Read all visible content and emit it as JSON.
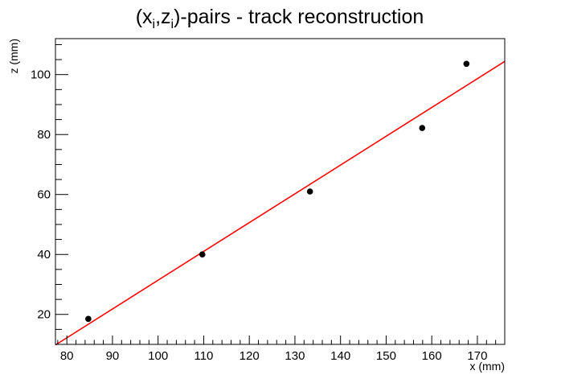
{
  "chart_data": {
    "type": "scatter",
    "title": {
      "prefix": "(x",
      "sub1": "i",
      "middle": ",z",
      "sub2": "i",
      "suffix": ")-pairs - track reconstruction"
    },
    "xlabel": "x (mm)",
    "ylabel": "z (mm)",
    "xlim": [
      77.5,
      176
    ],
    "ylim": [
      10,
      112
    ],
    "xticks": [
      80,
      90,
      100,
      110,
      120,
      130,
      140,
      150,
      160,
      170
    ],
    "yticks": [
      20,
      40,
      60,
      80,
      100
    ],
    "grid": false,
    "legend": "none",
    "series": [
      {
        "points": [
          {
            "x": 84.7,
            "y": 18.5
          },
          {
            "x": 109.7,
            "y": 40.0
          },
          {
            "x": 133.3,
            "y": 61.0
          },
          {
            "x": 157.9,
            "y": 82.2
          },
          {
            "x": 167.6,
            "y": 103.6
          }
        ],
        "color": "#000000"
      }
    ],
    "fit_line": {
      "x": [
        77.5,
        176
      ],
      "y": [
        9.8,
        104.4
      ],
      "color": "#ff0000"
    }
  }
}
